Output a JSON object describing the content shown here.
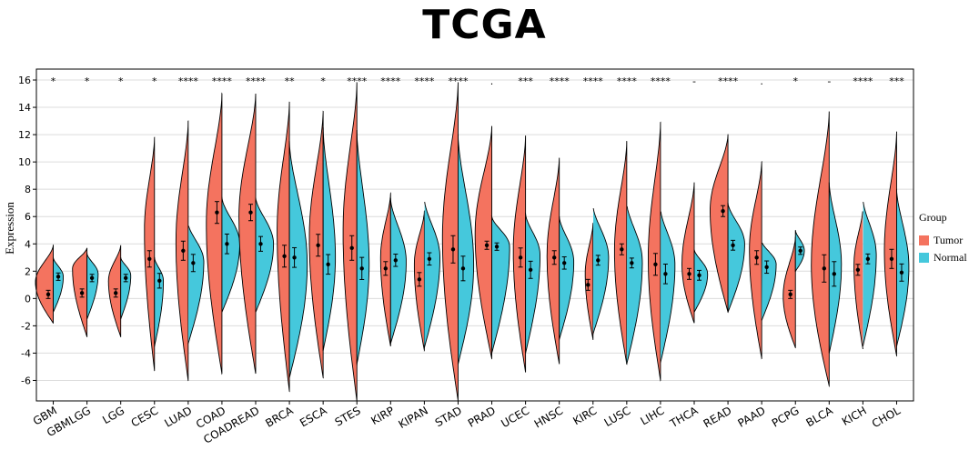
{
  "chart_data": {
    "type": "split-violin",
    "title": "TCGA",
    "xlabel": "",
    "ylabel": "Expression",
    "ylim": [
      -7.5,
      16.8
    ],
    "yticks": [
      -6,
      -4,
      -2,
      0,
      2,
      4,
      6,
      8,
      10,
      12,
      14,
      16
    ],
    "grid": true,
    "legend": {
      "title": "Group",
      "position": "right",
      "entries": [
        {
          "name": "Tumor",
          "color": "#f4735f"
        },
        {
          "name": "Normal",
          "color": "#45c8dc"
        }
      ]
    },
    "categories": [
      "GBM",
      "GBMLGG",
      "LGG",
      "CESC",
      "LUAD",
      "COAD",
      "COADREAD",
      "BRCA",
      "ESCA",
      "STES",
      "KIRP",
      "KIPAN",
      "STAD",
      "PRAD",
      "UCEC",
      "HNSC",
      "KIRC",
      "LUSC",
      "LIHC",
      "THCA",
      "READ",
      "PAAD",
      "PCPG",
      "BLCA",
      "KICH",
      "CHOL"
    ],
    "significance": [
      "*",
      "*",
      "*",
      "*",
      "****",
      "****",
      "****",
      "**",
      "*",
      "****",
      "****",
      "****",
      "****",
      ".",
      "***",
      "****",
      "****",
      "****",
      "****",
      "-",
      "****",
      ".",
      "*",
      "-",
      "****",
      "***"
    ],
    "series": [
      {
        "name": "Tumor",
        "color": "#f4735f",
        "min": [
          -1.8,
          -2.8,
          -2.8,
          -5.3,
          -6.0,
          -5.5,
          -5.5,
          -6.8,
          -5.8,
          -7.5,
          -3.5,
          -3.8,
          -7.5,
          -4.4,
          -5.4,
          -4.8,
          -3.0,
          -4.8,
          -6.0,
          -1.8,
          -1.0,
          -4.4,
          -3.6,
          -6.4,
          -3.7,
          -4.2
        ],
        "max": [
          3.9,
          3.7,
          3.9,
          11.8,
          13.0,
          15.0,
          15.0,
          14.4,
          13.7,
          15.8,
          7.7,
          6.4,
          15.8,
          12.6,
          11.9,
          10.3,
          5.5,
          11.5,
          12.9,
          8.5,
          12.0,
          10.0,
          4.5,
          13.7,
          6.6,
          12.2
        ],
        "mode": [
          1.2,
          2.2,
          1.3,
          5.0,
          4.2,
          5.5,
          6.0,
          5.0,
          4.5,
          5.0,
          3.0,
          2.5,
          4.5,
          4.8,
          3.5,
          3.2,
          1.8,
          3.5,
          3.0,
          2.5,
          6.5,
          3.6,
          0.2,
          2.5,
          2.5,
          3.5
        ],
        "width": [
          0.8,
          0.65,
          0.55,
          0.45,
          0.55,
          0.7,
          0.75,
          0.55,
          0.62,
          0.62,
          0.45,
          0.45,
          0.7,
          0.75,
          0.55,
          0.55,
          0.35,
          0.55,
          0.55,
          0.55,
          0.8,
          0.55,
          0.55,
          0.8,
          0.4,
          0.55
        ],
        "mean": [
          0.3,
          0.4,
          0.4,
          2.9,
          3.5,
          6.3,
          6.3,
          3.1,
          3.9,
          3.7,
          2.2,
          1.4,
          3.6,
          3.9,
          3.0,
          3.0,
          1.0,
          3.6,
          2.5,
          1.8,
          6.4,
          3.0,
          0.3,
          2.2,
          2.1,
          2.9
        ],
        "err": [
          0.3,
          0.3,
          0.3,
          0.6,
          0.7,
          0.8,
          0.6,
          0.8,
          0.8,
          0.9,
          0.5,
          0.5,
          1.0,
          0.3,
          0.7,
          0.5,
          0.4,
          0.4,
          0.8,
          0.4,
          0.4,
          0.5,
          0.3,
          1.0,
          0.4,
          0.7
        ]
      },
      {
        "name": "Normal",
        "color": "#45c8dc",
        "min": [
          -1.0,
          -1.5,
          -1.5,
          -3.5,
          -3.3,
          -1.0,
          -1.0,
          -5.8,
          -3.8,
          -4.8,
          -3.3,
          -3.6,
          -4.8,
          -4.0,
          -4.0,
          -3.0,
          -2.6,
          -4.8,
          -4.7,
          -1.0,
          -1.0,
          -1.6,
          2.0,
          -4.0,
          -3.5,
          -3.5
        ],
        "max": [
          3.0,
          3.3,
          3.0,
          3.0,
          5.5,
          7.4,
          7.4,
          11.5,
          12.5,
          12.3,
          7.3,
          7.3,
          12.0,
          6.0,
          6.2,
          6.0,
          6.8,
          7.0,
          6.6,
          3.6,
          7.0,
          4.2,
          5.0,
          8.5,
          7.3,
          8.0
        ],
        "mode": [
          1.6,
          1.8,
          1.7,
          1.3,
          2.7,
          4.0,
          4.0,
          2.5,
          3.0,
          2.5,
          2.7,
          3.0,
          2.5,
          3.8,
          3.2,
          2.7,
          3.0,
          2.7,
          2.5,
          1.8,
          4.0,
          2.5,
          3.5,
          2.5,
          3.2,
          2.3
        ],
        "width": [
          0.45,
          0.5,
          0.45,
          0.4,
          0.7,
          0.8,
          0.8,
          0.8,
          0.55,
          0.55,
          0.7,
          0.7,
          0.7,
          0.8,
          0.65,
          0.65,
          0.7,
          0.7,
          0.65,
          0.6,
          0.75,
          0.65,
          0.4,
          0.55,
          0.6,
          0.55
        ],
        "mean": [
          1.6,
          1.5,
          1.5,
          1.3,
          2.6,
          4.0,
          4.0,
          3.0,
          2.5,
          2.2,
          2.8,
          2.9,
          2.2,
          3.8,
          2.1,
          2.6,
          2.8,
          2.6,
          1.8,
          1.7,
          3.9,
          2.3,
          3.5,
          1.8,
          2.9,
          1.9
        ]
      }
    ]
  }
}
